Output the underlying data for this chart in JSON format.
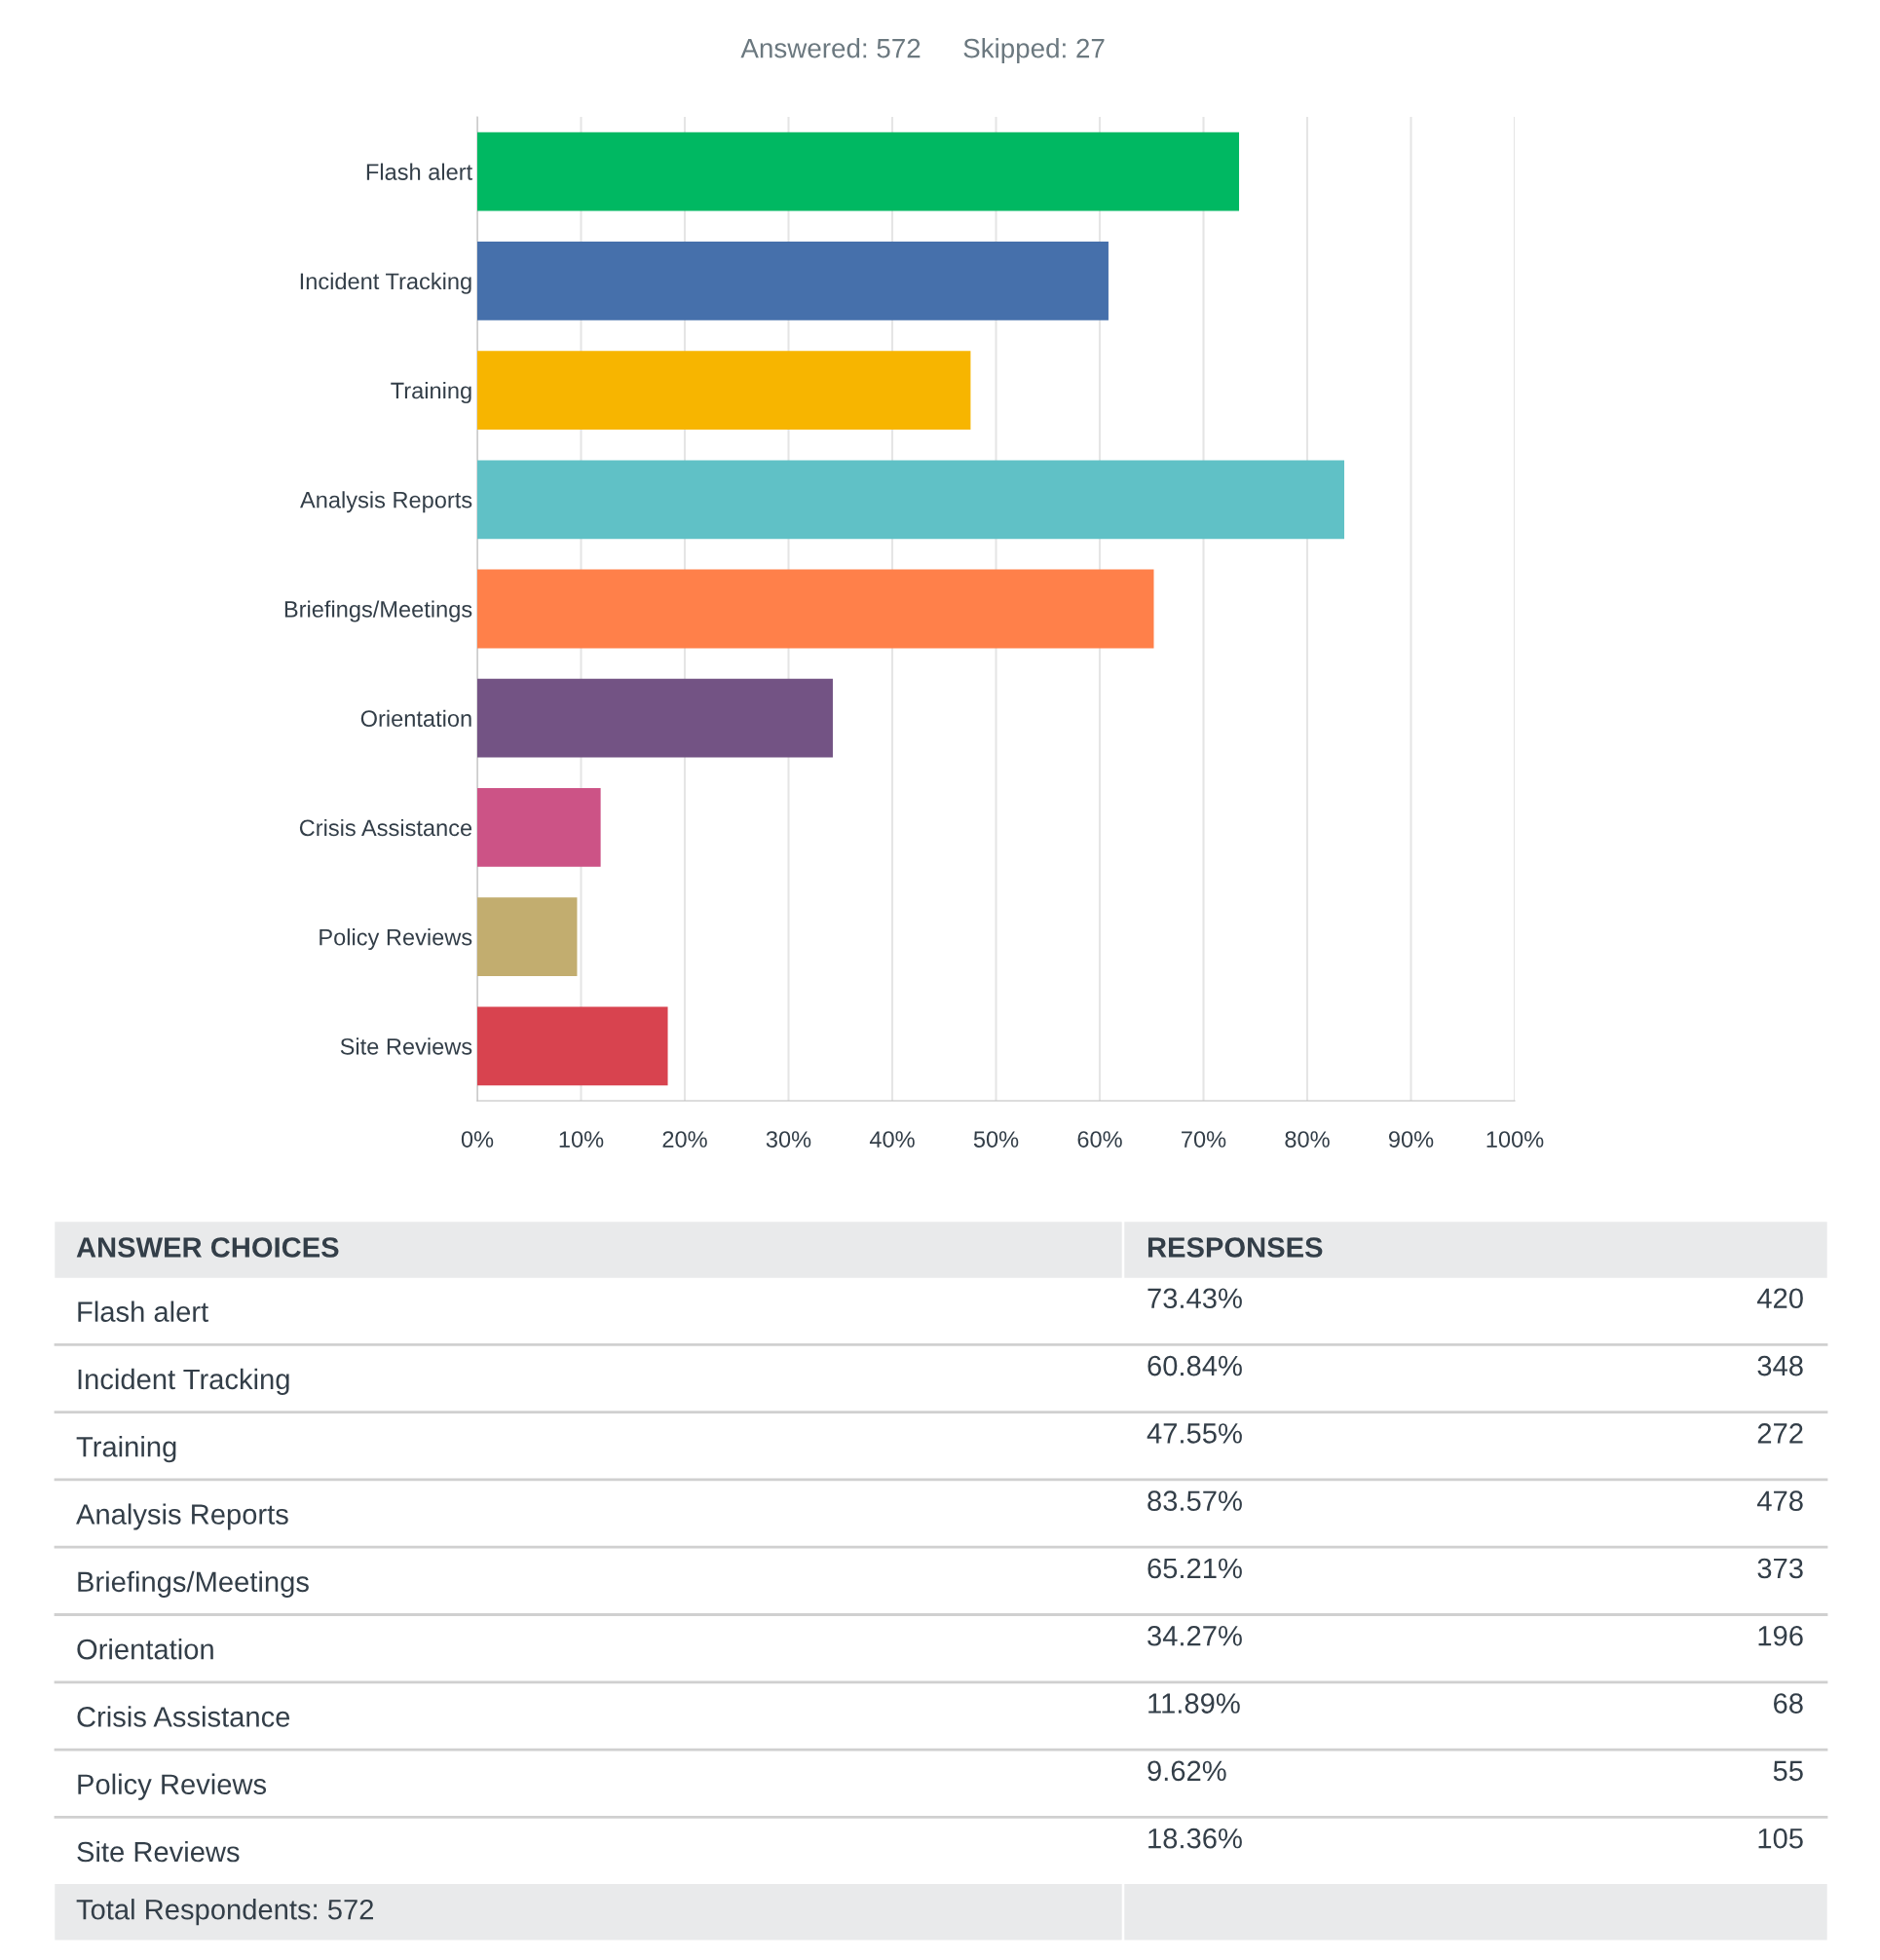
{
  "chart_data": {
    "type": "bar",
    "orientation": "horizontal",
    "title": "Answered: 572",
    "subtitle": "Skipped: 27",
    "categories": [
      "Flash alert",
      "Incident Tracking",
      "Training",
      "Analysis Reports",
      "Briefings/Meetings",
      "Orientation",
      "Crisis Assistance",
      "Policy Reviews",
      "Site Reviews"
    ],
    "values": [
      73.43,
      60.84,
      47.55,
      83.57,
      65.21,
      34.27,
      11.89,
      9.62,
      18.36
    ],
    "colors": [
      "#00b862",
      "#4670ab",
      "#f7b500",
      "#60c1c6",
      "#ff804a",
      "#735384",
      "#cc5386",
      "#c2ad6f",
      "#d8434f"
    ],
    "annotations": [
      "ANSWER CHOICES",
      "RESPONSES",
      "73.43%",
      "60.84%",
      "47.55%",
      "83.57%",
      "65.21%",
      "34.27%",
      "11.89%",
      "9.62%",
      "18.36%",
      "420",
      "348",
      "272",
      "478",
      "373",
      "196",
      "68",
      "55",
      "105",
      "Total Respondents: 572"
    ],
    "xlim": [
      0,
      100
    ],
    "xticks": [
      {
        "value": 0,
        "label": "0%"
      },
      {
        "value": 10,
        "label": "10%"
      },
      {
        "value": 20,
        "label": "20%"
      },
      {
        "value": 30,
        "label": "30%"
      },
      {
        "value": 40,
        "label": "40%"
      },
      {
        "value": 50,
        "label": "50%"
      },
      {
        "value": 60,
        "label": "60%"
      },
      {
        "value": 70,
        "label": "70%"
      },
      {
        "value": 80,
        "label": "80%"
      },
      {
        "value": 90,
        "label": "90%"
      },
      {
        "value": 100,
        "label": "100%"
      }
    ],
    "grid": "x",
    "legend": false
  }
}
